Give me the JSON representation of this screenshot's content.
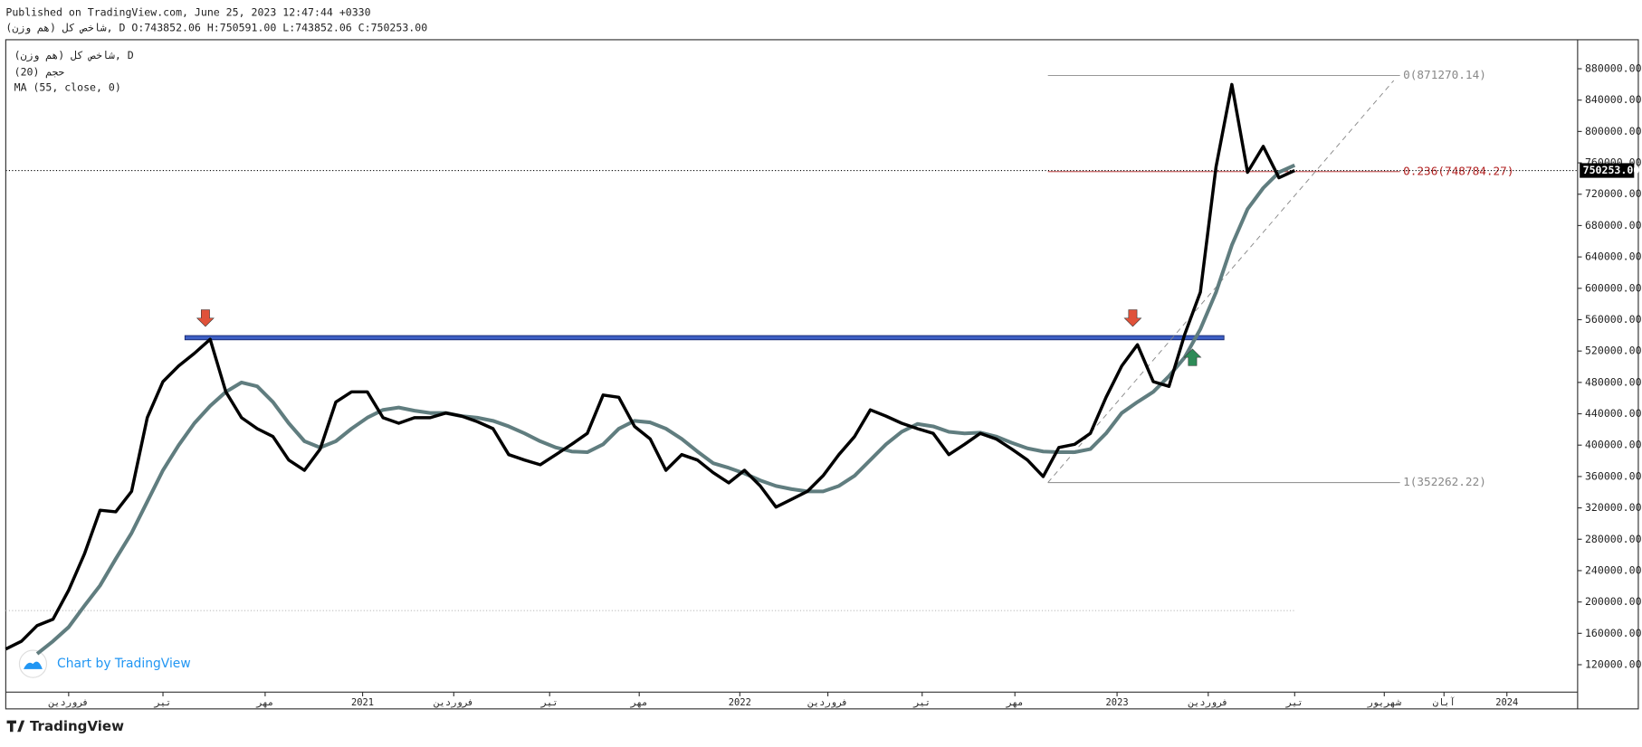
{
  "header": {
    "published": "Published on TradingView.com, June 25, 2023 12:47:44 +0330",
    "ohlc": "شاخص کل (هم وزن), D O:743852.06 H:750591.00 L:743852.06 C:750253.00",
    "indicator": "حجم (20)",
    "footer_brand": "Chart by TradingView",
    "logo": "TradingView"
  },
  "chart_data": {
    "type": "line",
    "x": [
      0,
      1,
      2,
      3,
      4,
      5,
      6,
      7,
      8,
      9,
      10,
      11,
      12,
      13,
      14,
      15,
      16,
      17,
      18,
      19,
      20,
      21,
      22,
      23,
      24,
      25,
      26,
      27,
      28,
      29,
      30,
      31,
      32,
      33,
      34,
      35,
      36,
      37,
      38,
      39,
      40,
      41,
      42,
      43,
      44,
      45,
      46,
      47,
      48,
      49,
      50,
      51,
      52,
      53,
      54,
      55,
      56,
      57,
      58,
      59,
      60,
      61,
      62,
      63,
      64,
      65,
      66,
      67,
      68,
      69,
      70,
      71,
      72,
      73,
      74,
      75,
      76,
      77,
      78,
      79,
      80,
      81,
      82
    ],
    "series": [
      {
        "name": "شاخص کل (هم وزن), D",
        "color": "#000000",
        "values": [
          140000,
          150000,
          170000,
          178000,
          215000,
          261000,
          317000,
          315000,
          341000,
          435000,
          481000,
          501000,
          517000,
          535000,
          468000,
          435000,
          421000,
          411000,
          381000,
          368000,
          395000,
          455000,
          468000,
          468000,
          435000,
          428000,
          435000,
          435000,
          441000,
          437000,
          430000,
          421000,
          388000,
          381000,
          375000,
          388000,
          401000,
          415000,
          464000,
          461000,
          424000,
          408000,
          368000,
          388000,
          381000,
          365000,
          352000,
          368000,
          348000,
          321000,
          331000,
          341000,
          361000,
          388000,
          411000,
          445000,
          437000,
          428000,
          421000,
          415000,
          388000,
          401000,
          415000,
          408000,
          395000,
          381000,
          360000,
          397000,
          401000,
          415000,
          461000,
          501000,
          528000,
          481000,
          475000,
          541000,
          595000,
          755000,
          860000,
          748000,
          781000,
          741000,
          750253
        ]
      },
      {
        "name": "MA (55, close, 0)",
        "color": "#607d7f",
        "values": [
          null,
          null,
          134000,
          150000,
          168000,
          195000,
          221000,
          255000,
          288000,
          328000,
          368000,
          400000,
          428000,
          450000,
          468000,
          480000,
          475000,
          455000,
          428000,
          405000,
          397000,
          405000,
          421000,
          435000,
          445000,
          448000,
          444000,
          441000,
          441000,
          437000,
          435000,
          431000,
          424000,
          415000,
          405000,
          397000,
          392000,
          391000,
          401000,
          421000,
          431000,
          429000,
          421000,
          408000,
          392000,
          377000,
          371000,
          364000,
          355000,
          348000,
          344000,
          341000,
          341000,
          348000,
          361000,
          381000,
          401000,
          417000,
          427000,
          424000,
          417000,
          415000,
          416000,
          411000,
          403000,
          396000,
          392000,
          391000,
          391000,
          395000,
          415000,
          441000,
          455000,
          468000,
          488000,
          512000,
          548000,
          595000,
          655000,
          701000,
          728000,
          748000,
          757000
        ]
      }
    ],
    "xlim": [
      0,
      100
    ],
    "xticks": [
      {
        "value": 4,
        "label": "فروردین"
      },
      {
        "value": 10,
        "label": "تیر"
      },
      {
        "value": 16.5,
        "label": "مهر"
      },
      {
        "value": 22.7,
        "label": "2021"
      },
      {
        "value": 28.5,
        "label": "فروردین"
      },
      {
        "value": 34.6,
        "label": "تیر"
      },
      {
        "value": 40.3,
        "label": "مهر"
      },
      {
        "value": 46.7,
        "label": "2022"
      },
      {
        "value": 52.3,
        "label": "فروردین"
      },
      {
        "value": 58.3,
        "label": "تیر"
      },
      {
        "value": 64.2,
        "label": "مهر"
      },
      {
        "value": 70.7,
        "label": "2023"
      },
      {
        "value": 76.5,
        "label": "فروردین"
      },
      {
        "value": 82,
        "label": "تیر"
      },
      {
        "value": 87.7,
        "label": "شهریور"
      },
      {
        "value": 91.5,
        "label": "آبان"
      },
      {
        "value": 95.5,
        "label": "2024"
      }
    ],
    "ylim": [
      85000,
      917000
    ],
    "yticks": [
      {
        "value": 120000,
        "label": "120000.00"
      },
      {
        "value": 160000,
        "label": "160000.00"
      },
      {
        "value": 200000,
        "label": "200000.00"
      },
      {
        "value": 240000,
        "label": "240000.00"
      },
      {
        "value": 280000,
        "label": "280000.00"
      },
      {
        "value": 320000,
        "label": "320000.00"
      },
      {
        "value": 360000,
        "label": "360000.00"
      },
      {
        "value": 400000,
        "label": "400000.00"
      },
      {
        "value": 440000,
        "label": "440000.00"
      },
      {
        "value": 480000,
        "label": "480000.00"
      },
      {
        "value": 520000,
        "label": "520000.00"
      },
      {
        "value": 560000,
        "label": "560000.00"
      },
      {
        "value": 600000,
        "label": "600000.00"
      },
      {
        "value": 640000,
        "label": "640000.00"
      },
      {
        "value": 680000,
        "label": "680000.00"
      },
      {
        "value": 720000,
        "label": "720000.00"
      },
      {
        "value": 760000,
        "label": "760000.00"
      },
      {
        "value": 800000,
        "label": "800000.00"
      },
      {
        "value": 840000,
        "label": "840000.00"
      },
      {
        "value": 880000,
        "label": "880000.00"
      }
    ],
    "last_price": {
      "value": 750253,
      "label": "750253.00"
    },
    "fib": {
      "x": [
        66.3,
        88.7
      ],
      "levels": [
        {
          "value": 871270.14,
          "label": "0(871270.14)",
          "color": "#888888"
        },
        {
          "value": 748784.27,
          "label": "0.236(748784.27)",
          "color": "#b22222"
        },
        {
          "value": 352262.22,
          "label": "1(352262.22)",
          "color": "#888888"
        }
      ]
    },
    "trend": {
      "x": [
        66.3,
        88.3
      ],
      "y": [
        352262.22,
        865000
      ]
    },
    "resistance": {
      "value": 537000,
      "x": [
        11.4,
        77.5
      ],
      "color": "#3d5fc4"
    },
    "support_line": 189000,
    "arrows": [
      {
        "x": 12.7,
        "y": 562000,
        "dir": "down",
        "color": "#e0523a"
      },
      {
        "x": 71.7,
        "y": 562000,
        "dir": "down",
        "color": "#e0523a"
      },
      {
        "x": 75.5,
        "y": 512000,
        "dir": "up",
        "color": "#2e8b57"
      }
    ]
  }
}
